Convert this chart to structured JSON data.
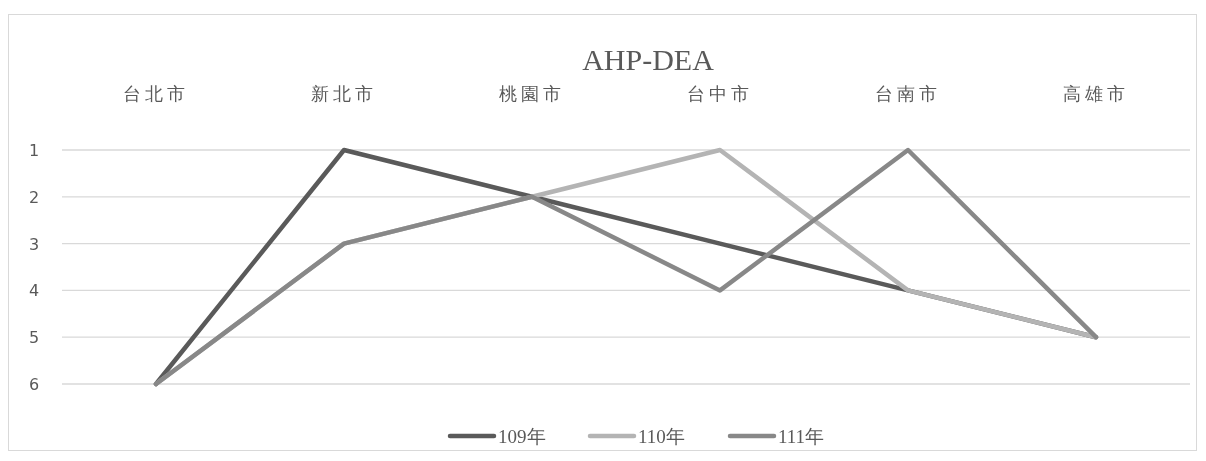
{
  "chart_data": {
    "type": "line",
    "title": "AHP-DEA",
    "categories": [
      "台北市",
      "新北市",
      "桃園市",
      "台中市",
      "台南市",
      "高雄市"
    ],
    "series": [
      {
        "name": "109年",
        "color": "#5a5a5a",
        "values": [
          6,
          1,
          2,
          3,
          4,
          5
        ]
      },
      {
        "name": "110年",
        "color": "#b4b4b4",
        "values": [
          6,
          3,
          2,
          1,
          4,
          5
        ]
      },
      {
        "name": "111年",
        "color": "#888888",
        "values": [
          6,
          3,
          2,
          4,
          1,
          5
        ]
      }
    ],
    "ylim": [
      6,
      1
    ],
    "yticks": [
      1,
      2,
      3,
      4,
      5,
      6
    ],
    "grid": "y",
    "legend": "bottom"
  }
}
